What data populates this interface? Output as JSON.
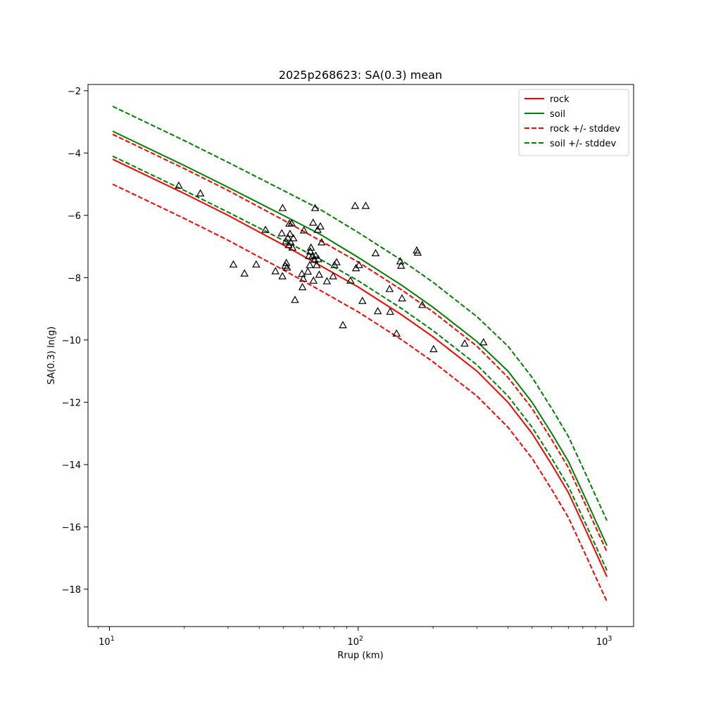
{
  "chart_data": {
    "type": "line",
    "title": "2025p268623: SA(0.3) mean",
    "xlabel": "Rrup (km)",
    "ylabel": "SA(0.3) ln(g)",
    "xscale": "log",
    "xlim": [
      8.2,
      1280
    ],
    "ylim": [
      -19.2,
      -1.8
    ],
    "xticks": [
      {
        "value": 10,
        "base": "10",
        "exp": "1"
      },
      {
        "value": 100,
        "base": "10",
        "exp": "2"
      },
      {
        "value": 1000,
        "base": "10",
        "exp": "3"
      }
    ],
    "yticks": [
      -2,
      -4,
      -6,
      -8,
      -10,
      -12,
      -14,
      -16,
      -18
    ],
    "ytick_labels": [
      "−2",
      "−4",
      "−6",
      "−8",
      "−10",
      "−12",
      "−14",
      "−16",
      "−18"
    ],
    "legend_position": "top-right",
    "grid": false,
    "series": [
      {
        "name": "rock",
        "color": "#ff0000",
        "dashed": false,
        "x": [
          10.3,
          20,
          30,
          50,
          70,
          100,
          150,
          200,
          300,
          400,
          500,
          600,
          700,
          800,
          900,
          1000
        ],
        "y": [
          -4.2,
          -5.3,
          -6.0,
          -6.95,
          -7.6,
          -8.3,
          -9.2,
          -9.9,
          -11.0,
          -12.0,
          -13.0,
          -14.0,
          -14.9,
          -15.9,
          -16.8,
          -17.6
        ]
      },
      {
        "name": "soil",
        "color": "#008000",
        "dashed": false,
        "x": [
          10.3,
          20,
          30,
          50,
          70,
          100,
          150,
          200,
          300,
          400,
          500,
          600,
          700,
          800,
          900,
          1000
        ],
        "y": [
          -3.3,
          -4.4,
          -5.1,
          -6.0,
          -6.6,
          -7.35,
          -8.25,
          -8.95,
          -10.05,
          -11.0,
          -12.0,
          -13.0,
          -13.9,
          -14.9,
          -15.8,
          -16.6
        ]
      },
      {
        "name": "rock +/- stddev",
        "color": "#ff0000",
        "dashed": true,
        "x": [
          10.3,
          20,
          30,
          50,
          70,
          100,
          150,
          200,
          300,
          400,
          500,
          600,
          700,
          800,
          900,
          1000
        ],
        "y": [
          -5.0,
          -6.1,
          -6.8,
          -7.75,
          -8.4,
          -9.1,
          -10.0,
          -10.7,
          -11.8,
          -12.8,
          -13.8,
          -14.8,
          -15.7,
          -16.7,
          -17.6,
          -18.4
        ]
      },
      {
        "name": "",
        "color": "#ff0000",
        "dashed": true,
        "x": [
          10.3,
          20,
          30,
          50,
          70,
          100,
          150,
          200,
          300,
          400,
          500,
          600,
          700,
          800,
          900,
          1000
        ],
        "y": [
          -3.4,
          -4.5,
          -5.2,
          -6.15,
          -6.8,
          -7.5,
          -8.4,
          -9.1,
          -10.2,
          -11.2,
          -12.2,
          -13.2,
          -14.1,
          -15.1,
          -16.0,
          -16.8
        ]
      },
      {
        "name": "soil +/- stddev",
        "color": "#008000",
        "dashed": true,
        "x": [
          10.3,
          20,
          30,
          50,
          70,
          100,
          150,
          200,
          300,
          400,
          500,
          600,
          700,
          800,
          900,
          1000
        ],
        "y": [
          -4.1,
          -5.2,
          -5.9,
          -6.8,
          -7.4,
          -8.1,
          -9.0,
          -9.7,
          -10.8,
          -11.8,
          -12.8,
          -13.8,
          -14.7,
          -15.7,
          -16.6,
          -17.4
        ]
      },
      {
        "name": "",
        "color": "#008000",
        "dashed": true,
        "x": [
          10.3,
          20,
          30,
          50,
          70,
          100,
          150,
          200,
          300,
          400,
          500,
          600,
          700,
          800,
          900,
          1000
        ],
        "y": [
          -2.5,
          -3.6,
          -4.3,
          -5.2,
          -5.8,
          -6.55,
          -7.45,
          -8.15,
          -9.25,
          -10.2,
          -11.2,
          -12.2,
          -13.1,
          -14.1,
          -15.0,
          -15.8
        ]
      }
    ],
    "observations": {
      "marker": "triangle",
      "color": "#000000",
      "points": [
        [
          19,
          -5.05
        ],
        [
          23.2,
          -5.3
        ],
        [
          31.5,
          -7.58
        ],
        [
          34.9,
          -7.87
        ],
        [
          38.9,
          -7.58
        ],
        [
          42.4,
          -6.47
        ],
        [
          46.5,
          -7.8
        ],
        [
          49.3,
          -6.58
        ],
        [
          49.6,
          -7.96
        ],
        [
          49.7,
          -5.77
        ],
        [
          50.9,
          -7.62
        ],
        [
          51.2,
          -6.84
        ],
        [
          51.4,
          -7.53
        ],
        [
          51.8,
          -7.68
        ],
        [
          52.1,
          -6.72
        ],
        [
          52.5,
          -6.96
        ],
        [
          52.9,
          -6.27
        ],
        [
          53.2,
          -6.6
        ],
        [
          53.6,
          -6.88
        ],
        [
          54.0,
          -6.26
        ],
        [
          54.4,
          -7.04
        ],
        [
          54.9,
          -6.74
        ],
        [
          55.7,
          -8.72
        ],
        [
          59.4,
          -7.88
        ],
        [
          59.7,
          -8.31
        ],
        [
          60.1,
          -8.04
        ],
        [
          60.5,
          -6.49
        ],
        [
          62.8,
          -7.81
        ],
        [
          63.4,
          -7.31
        ],
        [
          63.9,
          -7.6
        ],
        [
          64.2,
          -7.16
        ],
        [
          64.6,
          -7.04
        ],
        [
          65.4,
          -7.32
        ],
        [
          65.9,
          -6.24
        ],
        [
          66.1,
          -8.1
        ],
        [
          66.8,
          -7.43
        ],
        [
          67.1,
          -5.77
        ],
        [
          67.5,
          -7.3
        ],
        [
          68.1,
          -7.6
        ],
        [
          68.7,
          -6.47
        ],
        [
          69.1,
          -7.41
        ],
        [
          69.7,
          -7.91
        ],
        [
          70.5,
          -6.36
        ],
        [
          71.3,
          -6.87
        ],
        [
          74.9,
          -8.12
        ],
        [
          79.3,
          -7.96
        ],
        [
          80.3,
          -7.6
        ],
        [
          81.9,
          -7.51
        ],
        [
          86.8,
          -9.53
        ],
        [
          93.1,
          -8.1
        ],
        [
          97.2,
          -5.7
        ],
        [
          98.0,
          -7.7
        ],
        [
          100.8,
          -7.6
        ],
        [
          104.0,
          -8.75
        ],
        [
          107.2,
          -5.7
        ],
        [
          117.5,
          -7.22
        ],
        [
          119.9,
          -9.08
        ],
        [
          133.7,
          -8.37
        ],
        [
          134.4,
          -9.1
        ],
        [
          142.6,
          -9.8
        ],
        [
          147.6,
          -7.48
        ],
        [
          148.8,
          -7.62
        ],
        [
          150.0,
          -8.67
        ],
        [
          171.9,
          -7.13
        ],
        [
          173.5,
          -7.2
        ],
        [
          181.0,
          -8.88
        ],
        [
          201.0,
          -10.3
        ],
        [
          268.0,
          -10.12
        ],
        [
          319.0,
          -10.08
        ]
      ]
    }
  }
}
